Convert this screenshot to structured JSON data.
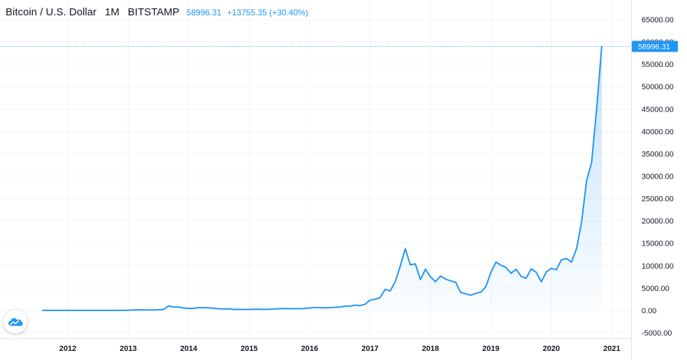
{
  "header": {
    "symbol": "Bitcoin / U.S. Dollar",
    "interval": "1M",
    "exchange": "BITSTAMP",
    "last_price": "58996.31",
    "change": "+13755.35 (+30.40%)"
  },
  "last_price_label": "58996.31",
  "colors": {
    "line": "#2196f3",
    "accent": "#2196f3",
    "grid": "#f0f3fa",
    "axis_text": "#131722"
  },
  "logo_icon": "tradingview-cloud-icon",
  "chart_data": {
    "type": "area",
    "x_start": "2011-08",
    "interval": "1M",
    "x_ticks": [
      "2012",
      "2013",
      "2014",
      "2015",
      "2016",
      "2017",
      "2018",
      "2019",
      "2020",
      "2021"
    ],
    "y_ticks": [
      "65000.00",
      "60000.00",
      "55000.00",
      "50000.00",
      "45000.00",
      "40000.00",
      "35000.00",
      "30000.00",
      "25000.00",
      "20000.00",
      "15000.00",
      "10000.00",
      "5000.00",
      "0.00",
      "-5000.00"
    ],
    "ylim": [
      -5000,
      65000
    ],
    "last_value": 58996.31,
    "series": [
      {
        "values": [
          8,
          5,
          3,
          3,
          4,
          5,
          5,
          5,
          5,
          7,
          7,
          10,
          12,
          11,
          13,
          13,
          20,
          33,
          93,
          139,
          97,
          106,
          90,
          141,
          204,
          1000,
          730,
          740,
          540,
          450,
          460,
          640,
          610,
          580,
          480,
          380,
          320,
          350,
          220,
          240,
          210,
          230,
          260,
          280,
          230,
          240,
          330,
          370,
          430,
          370,
          410,
          400,
          440,
          530,
          670,
          620,
          570,
          620,
          700,
          740,
          960,
          960,
          1180,
          1070,
          1350,
          2300,
          2500,
          2870,
          4700,
          4340,
          6400,
          9900,
          13800,
          10200,
          10400,
          6900,
          9200,
          7500,
          6400,
          7700,
          7000,
          6600,
          6300,
          4000,
          3700,
          3400,
          3800,
          4100,
          5300,
          8500,
          10800,
          10100,
          9600,
          8300,
          9200,
          7600,
          7200,
          9300,
          8500,
          6400,
          8600,
          9400,
          9100,
          11300,
          11600,
          10800,
          13800,
          19700,
          29000,
          33100,
          45200,
          58996.31
        ]
      }
    ]
  }
}
